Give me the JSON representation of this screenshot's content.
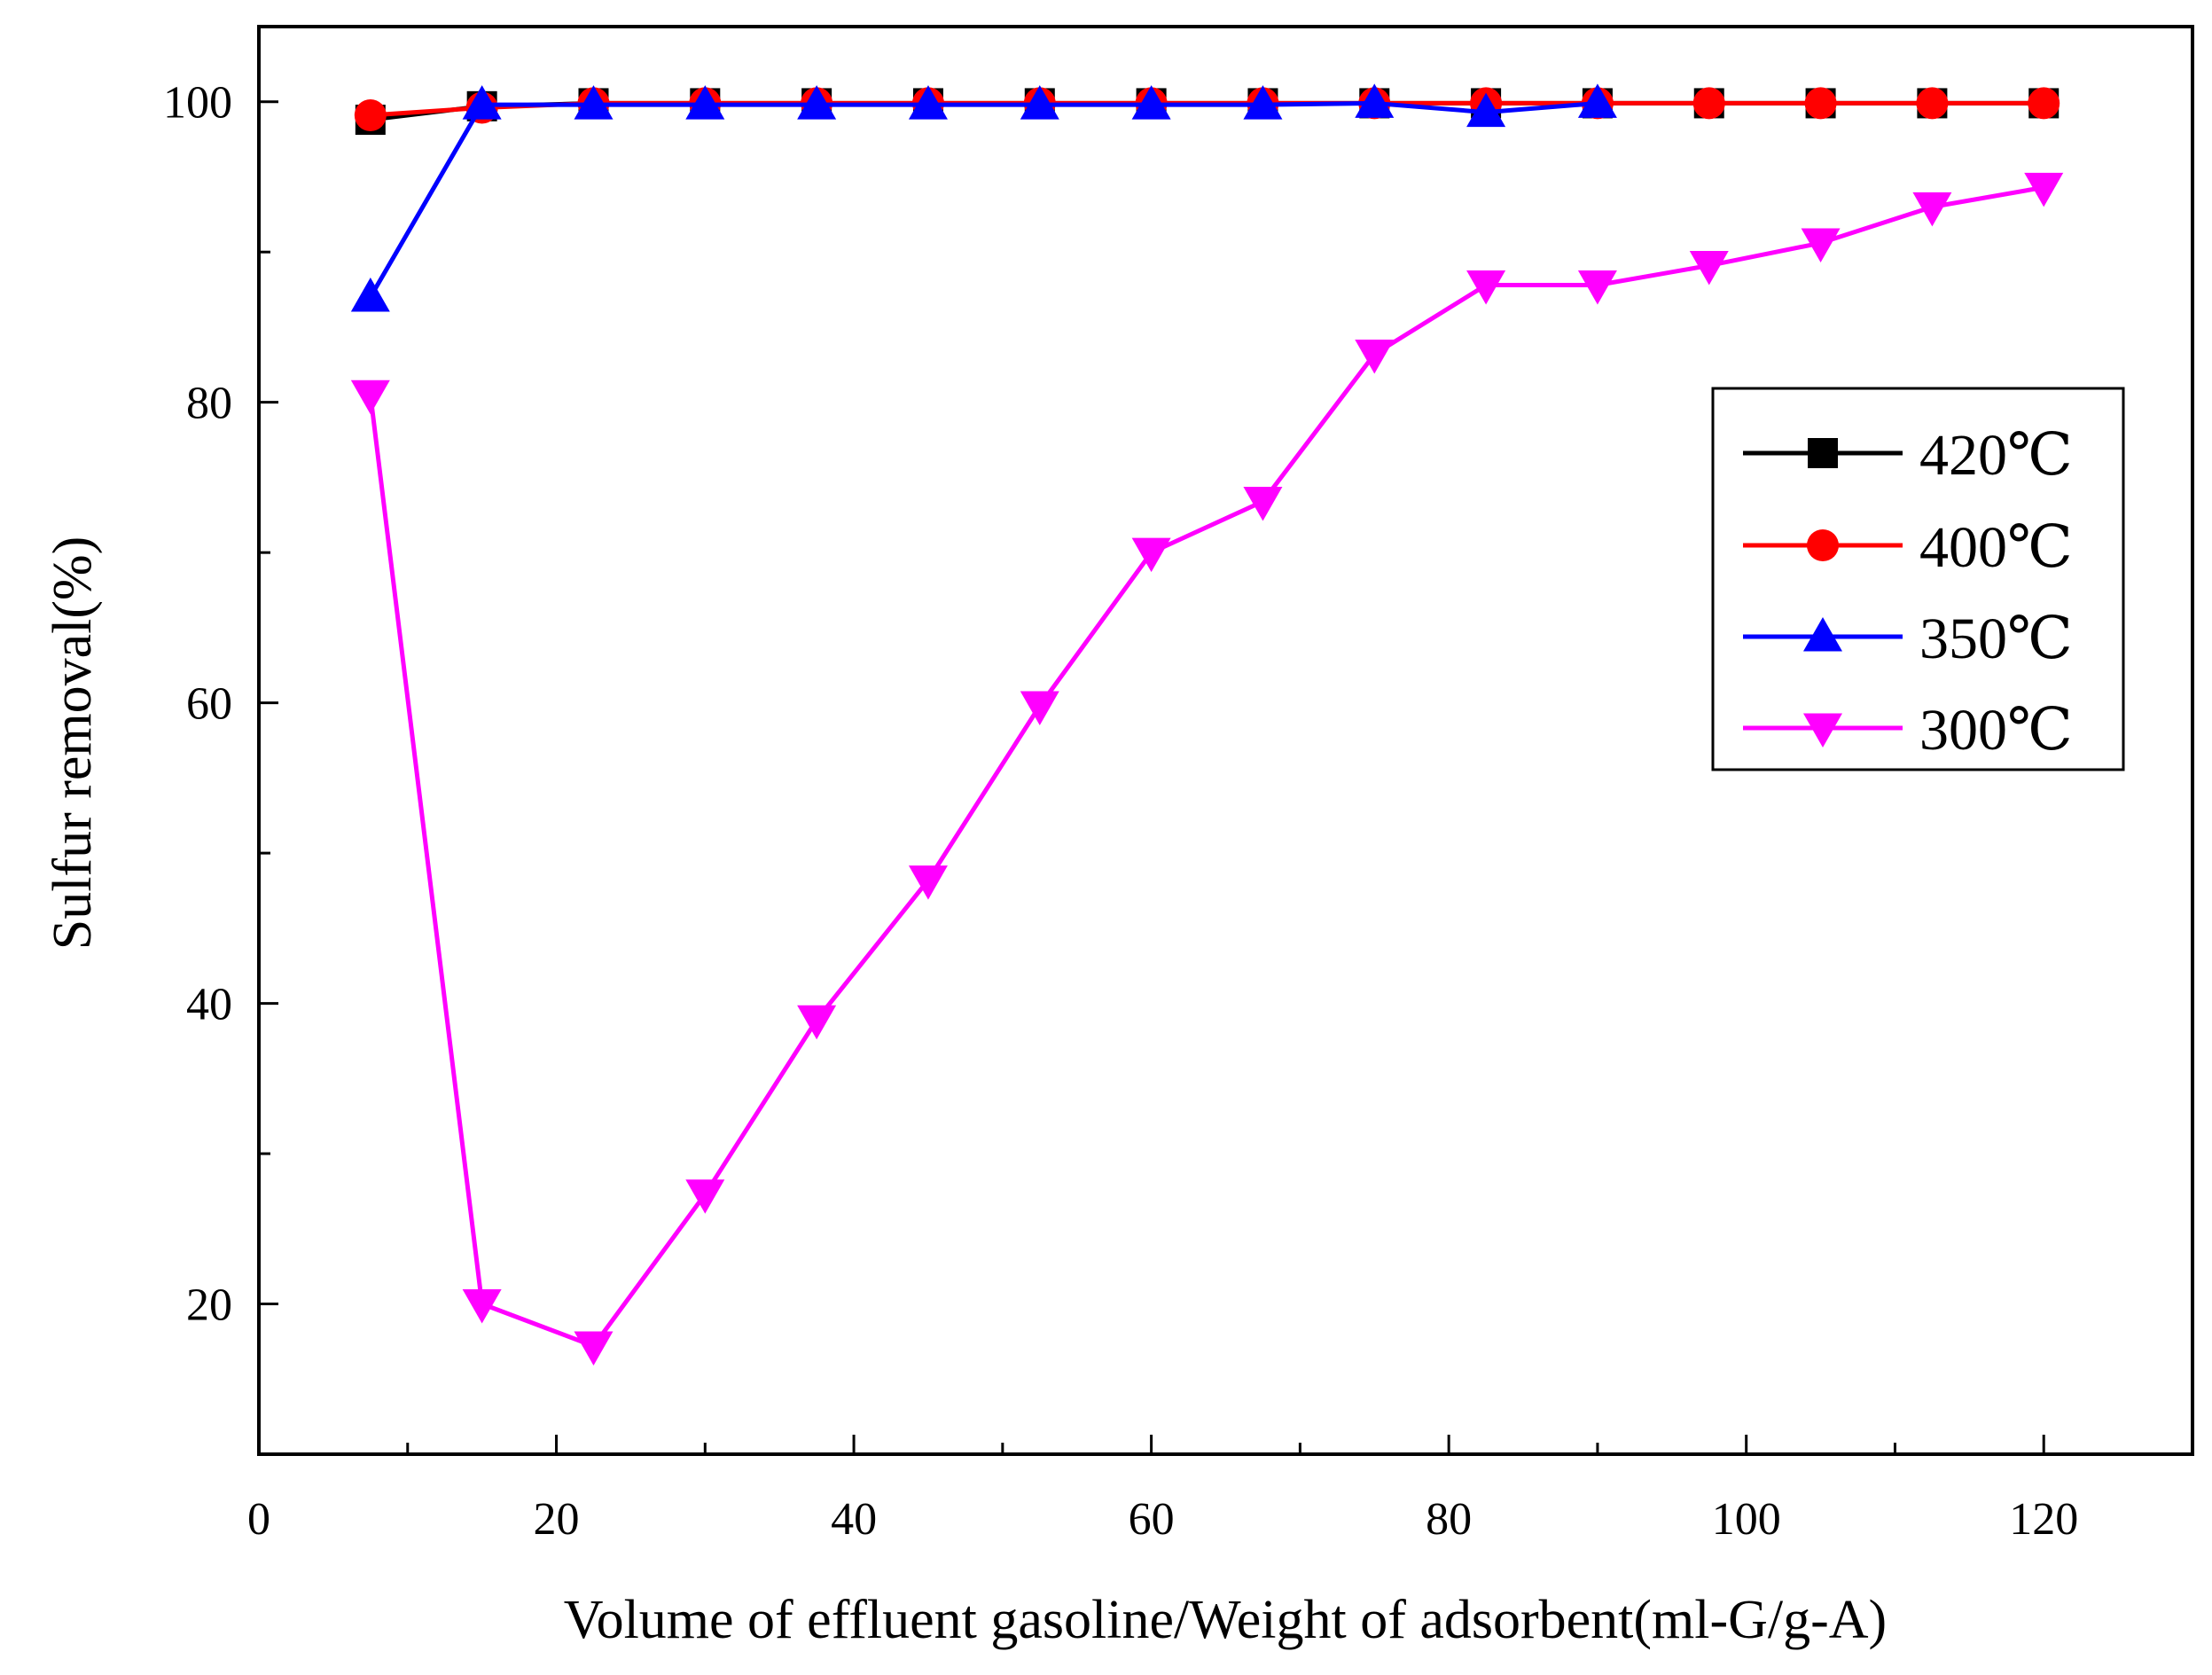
{
  "chart_data": {
    "type": "line",
    "title": "",
    "xlabel": "Volume of effluent gasoline/Weight of adsorbent(ml-G/g-A)",
    "ylabel": "Sulfur removal(%)",
    "xlim": [
      0,
      130
    ],
    "ylim": [
      10,
      105
    ],
    "x_ticks": [
      0,
      20,
      40,
      60,
      80,
      100,
      120
    ],
    "x_tick_labels": [
      "0",
      "20",
      "40",
      "60",
      "80",
      "100",
      "120"
    ],
    "y_ticks": [
      20,
      40,
      60,
      80,
      100
    ],
    "y_tick_labels": [
      "20",
      "40",
      "60",
      "80",
      "100"
    ],
    "grid": false,
    "legend_position": "right",
    "series": [
      {
        "name": "420℃",
        "color": "#000000",
        "marker": "square",
        "x": [
          7.5,
          15,
          22.5,
          30,
          37.5,
          45,
          52.5,
          60,
          67.5,
          75,
          82.5,
          90,
          97.5,
          105,
          112.5,
          120
        ],
        "y": [
          98.8,
          99.7,
          99.9,
          99.9,
          99.9,
          99.9,
          99.9,
          99.9,
          99.9,
          99.9,
          99.9,
          99.9,
          99.9,
          99.9,
          99.9,
          99.9
        ]
      },
      {
        "name": "400℃",
        "color": "#ff0000",
        "marker": "circle",
        "x": [
          7.5,
          15,
          22.5,
          30,
          37.5,
          45,
          52.5,
          60,
          67.5,
          75,
          82.5,
          90,
          97.5,
          105,
          112.5,
          120
        ],
        "y": [
          99.1,
          99.6,
          99.9,
          99.9,
          99.9,
          99.9,
          99.9,
          99.9,
          99.9,
          99.9,
          99.9,
          99.9,
          99.9,
          99.9,
          99.9,
          99.9
        ]
      },
      {
        "name": "350℃",
        "color": "#0000ff",
        "marker": "triangle-up",
        "x": [
          7.5,
          15,
          22.5,
          30,
          37.5,
          45,
          52.5,
          60,
          67.5,
          75,
          82.5,
          90
        ],
        "y": [
          87,
          99.8,
          99.8,
          99.8,
          99.8,
          99.8,
          99.8,
          99.8,
          99.8,
          99.9,
          99.3,
          99.9
        ]
      },
      {
        "name": "300℃",
        "color": "#ff00ff",
        "marker": "triangle-down",
        "x": [
          7.5,
          15,
          22.5,
          30,
          37.5,
          45,
          52.5,
          60,
          67.5,
          75,
          82.5,
          90,
          97.5,
          105,
          112.5,
          120
        ],
        "y": [
          80.5,
          20,
          17.2,
          27.3,
          38.9,
          48.2,
          59.8,
          70,
          73.4,
          83.2,
          87.8,
          87.8,
          89.1,
          90.6,
          93,
          94.3
        ]
      }
    ]
  }
}
